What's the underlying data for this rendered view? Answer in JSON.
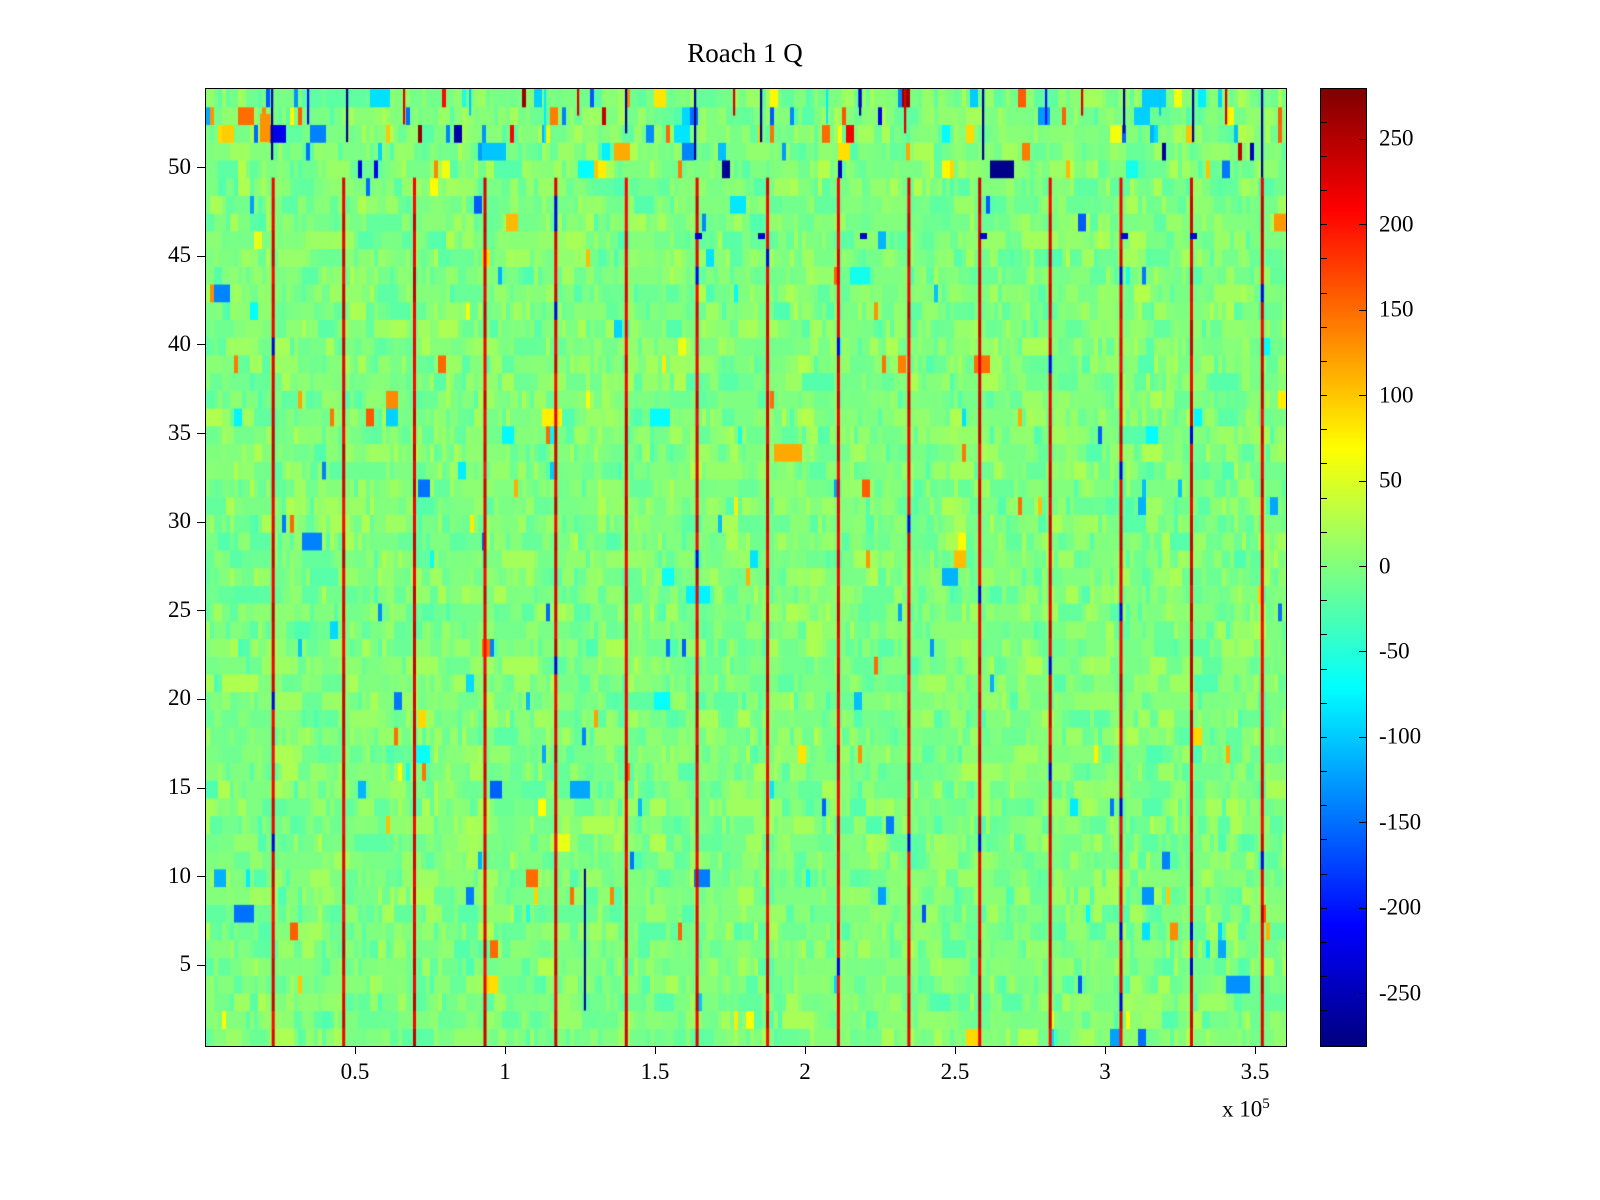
{
  "chart_data": {
    "type": "heatmap",
    "title": "Roach 1 Q",
    "x_axis": {
      "tick_labels": [
        "0.5",
        "1",
        "1.5",
        "2",
        "2.5",
        "3",
        "3.5"
      ],
      "tick_values": [
        0.5,
        1,
        1.5,
        2,
        2.5,
        3,
        3.5
      ],
      "range": [
        0,
        3.6
      ],
      "scale_prefix": "x 10",
      "scale_exponent": "5"
    },
    "y_axis": {
      "tick_labels": [
        "5",
        "10",
        "15",
        "20",
        "25",
        "30",
        "35",
        "40",
        "45",
        "50"
      ],
      "tick_values": [
        5,
        10,
        15,
        20,
        25,
        30,
        35,
        40,
        45,
        50
      ],
      "range": [
        0.5,
        54.5
      ],
      "rows": 54
    },
    "colorbar": {
      "tick_labels": [
        "250",
        "200",
        "150",
        "100",
        "50",
        "0",
        "-50",
        "-100",
        "-150",
        "-200",
        "-250"
      ],
      "tick_values": [
        250,
        200,
        150,
        100,
        50,
        0,
        -50,
        -100,
        -150,
        -200,
        -250
      ],
      "clim": [
        -280,
        280
      ],
      "colormap": "jet",
      "minor_tick_step": 20
    },
    "noise": {
      "seed": 1337,
      "amplitude": 30,
      "extreme_prob": 0.015,
      "extreme_amplitude": 110,
      "top_band_extreme_prob": 0.07,
      "run_prob": 0.45
    },
    "stripes": {
      "x_values": [
        0.224,
        0.459,
        0.695,
        0.93,
        1.166,
        1.401,
        1.637,
        1.872,
        2.108,
        2.343,
        2.579,
        2.814,
        3.05,
        3.285,
        3.521
      ],
      "base_value": 225,
      "dark_dropout_prob": 0.05,
      "dark_value": -230,
      "y_max": 49.5
    },
    "top_band": {
      "y_start": 49.5,
      "lines": [
        [
          0.22,
          -270,
          4.0
        ],
        [
          0.34,
          -200,
          2.0
        ],
        [
          0.47,
          -270,
          3.0
        ],
        [
          0.66,
          230,
          2.0
        ],
        [
          0.88,
          -100,
          1.5
        ],
        [
          1.13,
          -80,
          3.0
        ],
        [
          1.24,
          230,
          1.5
        ],
        [
          1.4,
          -270,
          2.5
        ],
        [
          1.63,
          -270,
          4.0
        ],
        [
          1.76,
          230,
          1.5
        ],
        [
          1.85,
          -270,
          3.0
        ],
        [
          2.07,
          -80,
          2.0
        ],
        [
          2.18,
          -270,
          1.5
        ],
        [
          2.33,
          230,
          2.5
        ],
        [
          2.59,
          -270,
          4.0
        ],
        [
          2.8,
          -200,
          2.0
        ],
        [
          2.92,
          230,
          1.5
        ],
        [
          3.06,
          -270,
          2.5
        ],
        [
          3.18,
          -100,
          1.5
        ],
        [
          3.29,
          -270,
          3.0
        ],
        [
          3.4,
          230,
          2.0
        ],
        [
          3.52,
          -270,
          5.0
        ]
      ]
    },
    "row46_specks": {
      "y": 46.2,
      "x_values": [
        1.64,
        1.85,
        2.19,
        2.59,
        3.06,
        3.29
      ],
      "value": -240
    },
    "orange_patch": {
      "x": 0.18,
      "y": 52.3,
      "width": 0.035,
      "height": 1.6,
      "value": 130
    },
    "dark_segment": {
      "x": 1.263,
      "y_from": 2.5,
      "y_to": 10.5,
      "value": -275
    }
  },
  "layout_colors": {
    "axis": "#000000",
    "background": "#ffffff"
  }
}
